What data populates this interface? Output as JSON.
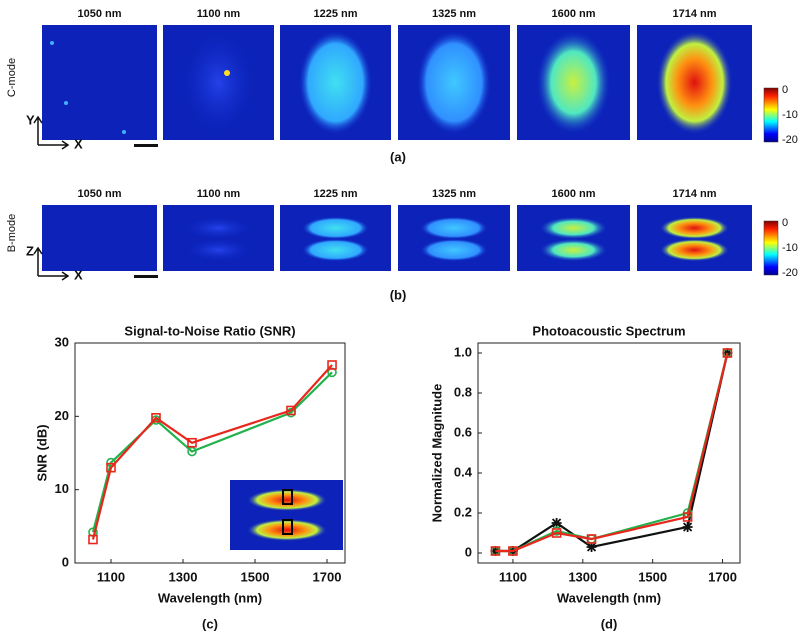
{
  "panel_a": {
    "wavelength_labels": [
      "1050 nm",
      "1100 nm",
      "1225 nm",
      "1325 nm",
      "1600 nm",
      "1714 nm"
    ],
    "row_label": "C-mode",
    "axis_vertical": "Y",
    "axis_horizontal": "X",
    "colorbar_ticks": [
      0,
      -10,
      -20
    ],
    "caption": "(a)"
  },
  "panel_b": {
    "wavelength_labels": [
      "1050 nm",
      "1100 nm",
      "1225 nm",
      "1325 nm",
      "1600 nm",
      "1714 nm"
    ],
    "row_label": "B-mode",
    "axis_vertical": "Z",
    "axis_horizontal": "X",
    "colorbar_ticks": [
      0,
      -10,
      -20
    ],
    "caption": "(b)"
  },
  "chart_data": [
    {
      "type": "line",
      "title": "Signal-to-Noise Ratio (SNR)",
      "x_label": "Wavelength (nm)",
      "y_label": "SNR (dB)",
      "caption": "(c)",
      "x": [
        1050,
        1100,
        1225,
        1325,
        1600,
        1714
      ],
      "xlim": [
        1000,
        1750
      ],
      "xticks": [
        1100,
        1300,
        1500,
        1700
      ],
      "ylim": [
        0,
        30
      ],
      "yticks": [
        0,
        10,
        20,
        30
      ],
      "series": [
        {
          "color": "#22b14c",
          "marker": "circle",
          "values": [
            4.2,
            13.7,
            19.5,
            15.2,
            20.5,
            26
          ]
        },
        {
          "color": "#e8271c",
          "marker": "square",
          "values": [
            3.2,
            13,
            19.8,
            16.4,
            20.8,
            27
          ]
        }
      ]
    },
    {
      "type": "line",
      "title": "Photoacoustic Spectrum",
      "x_label": "Wavelength (nm)",
      "y_label": "Normalized Magnitude",
      "caption": "(d)",
      "x": [
        1050,
        1100,
        1225,
        1325,
        1600,
        1714
      ],
      "xlim": [
        1000,
        1750
      ],
      "xticks": [
        1100,
        1300,
        1500,
        1700
      ],
      "ylim": [
        -0.05,
        1.05
      ],
      "yticks": [
        0,
        0.2,
        0.4,
        0.6,
        0.8,
        {
          "value": 1,
          "label": "1.0"
        }
      ],
      "series": [
        {
          "color": "#111111",
          "marker": "star",
          "values": [
            0.01,
            0.01,
            0.15,
            0.03,
            0.13,
            1
          ]
        },
        {
          "color": "#22b14c",
          "marker": "circle",
          "values": [
            0.01,
            0.01,
            0.11,
            0.07,
            0.2,
            1
          ]
        },
        {
          "color": "#e8271c",
          "marker": "square",
          "values": [
            0.01,
            0.01,
            0.1,
            0.07,
            0.18,
            1
          ]
        }
      ]
    }
  ]
}
